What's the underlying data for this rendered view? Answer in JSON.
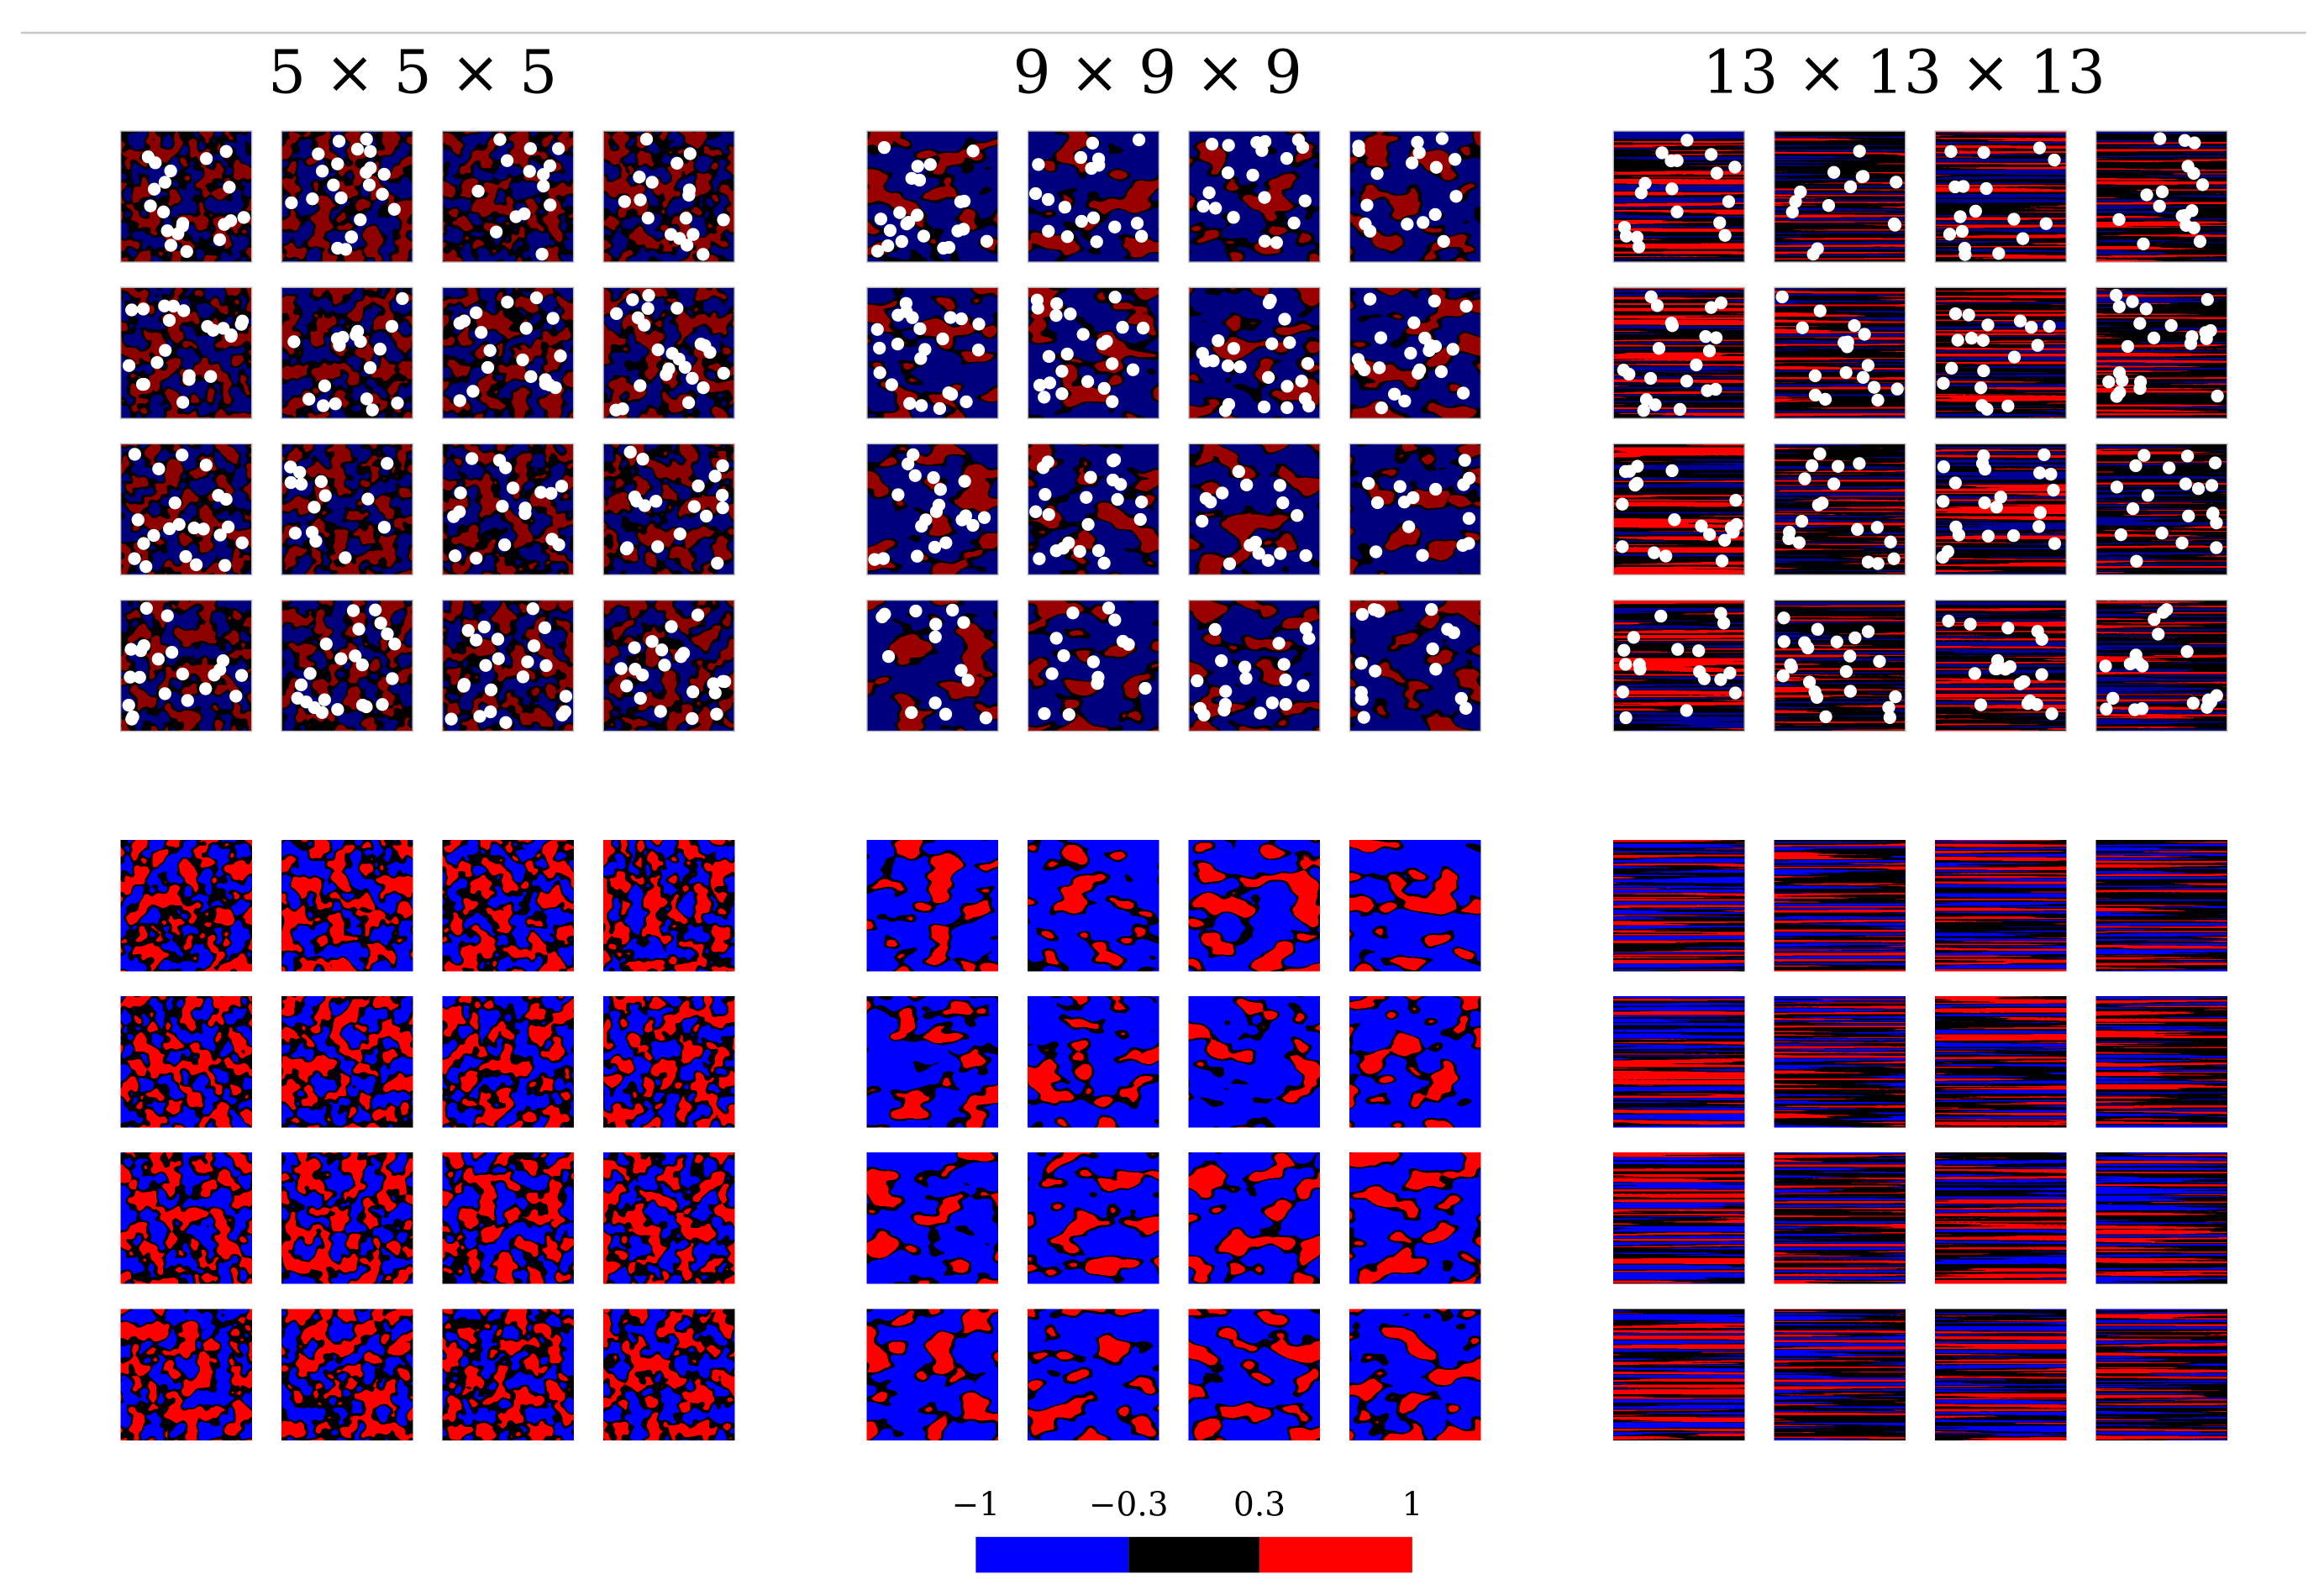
{
  "panels": [
    {
      "title": "5 × 5 × 5"
    },
    {
      "title": "9 × 9 × 9"
    },
    {
      "title": "13 × 13 × 13"
    }
  ],
  "colorbar": {
    "lim": [
      -1,
      1
    ],
    "ticks": [
      {
        "value": -1,
        "label": "−1"
      },
      {
        "value": -0.3,
        "label": "−0.3"
      },
      {
        "value": 0.3,
        "label": "0.3"
      },
      {
        "value": 1,
        "label": "1"
      }
    ],
    "colors": [
      "#0000ff",
      "#000000",
      "#ff0000"
    ]
  }
}
